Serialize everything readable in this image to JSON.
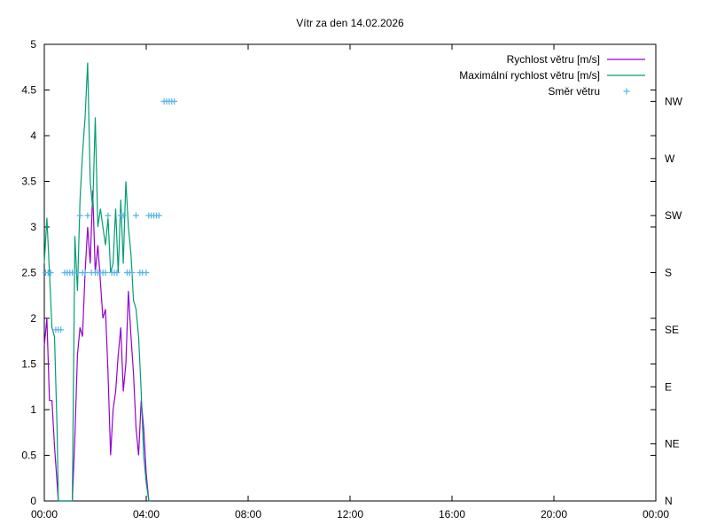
{
  "chart_data": {
    "type": "line",
    "title": "Vítr za den 14.02.2026",
    "x_ticks": [
      "00:00",
      "04:00",
      "08:00",
      "12:00",
      "16:00",
      "20:00",
      "00:00"
    ],
    "xlim_hours": [
      0,
      24
    ],
    "ylim": [
      0,
      5
    ],
    "y_ticks": [
      "0",
      "0.5",
      "1",
      "1.5",
      "2",
      "2.5",
      "3",
      "3.5",
      "4",
      "4.5",
      "5"
    ],
    "y2_ticks": [
      "N",
      "NE",
      "E",
      "SE",
      "S",
      "SW",
      "W",
      "NW"
    ],
    "legend_position": "top-right",
    "series": [
      {
        "name": "Rychlost větru [m/s]",
        "color": "#9400d3",
        "x_hours": [
          0.0,
          0.1,
          0.2,
          0.3,
          0.4,
          0.5,
          0.55,
          0.6,
          0.65,
          1.1,
          1.2,
          1.3,
          1.4,
          1.5,
          1.6,
          1.7,
          1.8,
          1.9,
          2.0,
          2.1,
          2.2,
          2.3,
          2.4,
          2.5,
          2.6,
          2.7,
          2.8,
          2.9,
          3.0,
          3.1,
          3.2,
          3.3,
          3.4,
          3.5,
          3.6,
          3.7,
          3.8,
          3.9,
          4.0,
          4.1,
          4.15
        ],
        "values": [
          1.7,
          2.0,
          1.1,
          1.1,
          0.6,
          0.2,
          0.0,
          0.0,
          0.0,
          0.0,
          0.7,
          1.6,
          1.9,
          1.8,
          2.5,
          3.0,
          2.6,
          3.4,
          2.5,
          2.8,
          2.4,
          2.0,
          2.1,
          1.4,
          0.5,
          1.0,
          1.2,
          1.6,
          1.9,
          1.2,
          1.5,
          2.3,
          1.8,
          1.4,
          0.8,
          0.5,
          1.1,
          0.8,
          0.3,
          0.0,
          0.0
        ]
      },
      {
        "name": "Maximální rychlost větru [m/s]",
        "color": "#009e73",
        "x_hours": [
          0.0,
          0.1,
          0.2,
          0.3,
          0.4,
          0.5,
          0.55,
          0.6,
          0.65,
          1.1,
          1.2,
          1.3,
          1.4,
          1.5,
          1.6,
          1.7,
          1.8,
          1.9,
          2.0,
          2.1,
          2.2,
          2.3,
          2.4,
          2.5,
          2.6,
          2.7,
          2.8,
          2.9,
          3.0,
          3.1,
          3.2,
          3.3,
          3.4,
          3.5,
          3.6,
          3.7,
          3.8,
          3.9,
          4.0,
          4.1,
          4.15
        ],
        "values": [
          2.6,
          3.1,
          2.5,
          1.9,
          1.8,
          0.8,
          0.0,
          0.0,
          0.0,
          0.0,
          2.9,
          2.3,
          3.3,
          3.8,
          4.2,
          4.8,
          3.5,
          3.2,
          4.2,
          3.0,
          3.2,
          3.0,
          2.8,
          3.1,
          2.5,
          2.6,
          3.2,
          2.5,
          3.3,
          2.6,
          3.5,
          3.0,
          2.7,
          2.2,
          2.1,
          1.8,
          1.2,
          0.5,
          0.2,
          0.0,
          0.0
        ]
      },
      {
        "name": "Směr větru",
        "color": "#56b4e9",
        "type": "scatter",
        "x_hours": [
          0.05,
          0.15,
          0.25,
          0.45,
          0.55,
          0.65,
          0.8,
          0.9,
          1.0,
          1.1,
          1.2,
          1.3,
          1.4,
          1.5,
          1.6,
          1.7,
          1.85,
          2.0,
          2.1,
          2.2,
          2.3,
          2.4,
          2.5,
          2.65,
          2.75,
          2.85,
          3.0,
          3.1,
          3.25,
          3.35,
          3.45,
          3.6,
          3.75,
          3.85,
          4.0,
          4.1,
          4.2,
          4.3,
          4.4,
          4.5,
          4.7,
          4.8,
          4.9,
          5.0,
          5.1
        ],
        "values": [
          "S",
          "S",
          "S",
          "SE",
          "SE",
          "SE",
          "S",
          "S",
          "S",
          "S",
          "S",
          "S",
          "SW",
          "S",
          "S",
          "SW",
          "S",
          "S",
          "S",
          "S",
          "S",
          "S",
          "SW",
          "S",
          "S",
          "S",
          "SW",
          "SW",
          "S",
          "S",
          "S",
          "SW",
          "S",
          "S",
          "S",
          "SW",
          "SW",
          "SW",
          "SW",
          "SW",
          "NW",
          "NW",
          "NW",
          "NW",
          "NW"
        ]
      }
    ]
  }
}
